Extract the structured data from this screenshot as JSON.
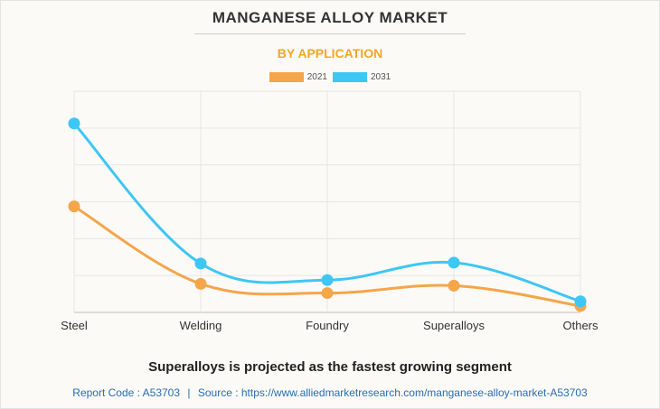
{
  "header": {
    "title": "MANGANESE ALLOY MARKET",
    "subtitle": "BY APPLICATION"
  },
  "colors": {
    "series_2021": "#f5a54a",
    "series_2031": "#3ec6f5",
    "subtitle": "#f5a623",
    "footer": "#2a6db2"
  },
  "chart_data": {
    "type": "line",
    "categories": [
      "Steel",
      "Welding",
      "Foundry",
      "Superalloys",
      "Others"
    ],
    "ylim": [
      0,
      12
    ],
    "y_ticks_labeled": false,
    "grid": true,
    "legend_position": "top-center",
    "curve": "smooth",
    "series": [
      {
        "name": "2021",
        "values": [
          5.75,
          1.55,
          1.05,
          1.45,
          0.35
        ]
      },
      {
        "name": "2031",
        "values": [
          10.25,
          2.65,
          1.75,
          2.7,
          0.6
        ]
      }
    ]
  },
  "headline": "Superalloys is projected as the fastest growing segment",
  "footer": {
    "report_code": "Report Code : A53703",
    "separator": "|",
    "source": "Source : https://www.alliedmarketresearch.com/manganese-alloy-market-A53703"
  }
}
